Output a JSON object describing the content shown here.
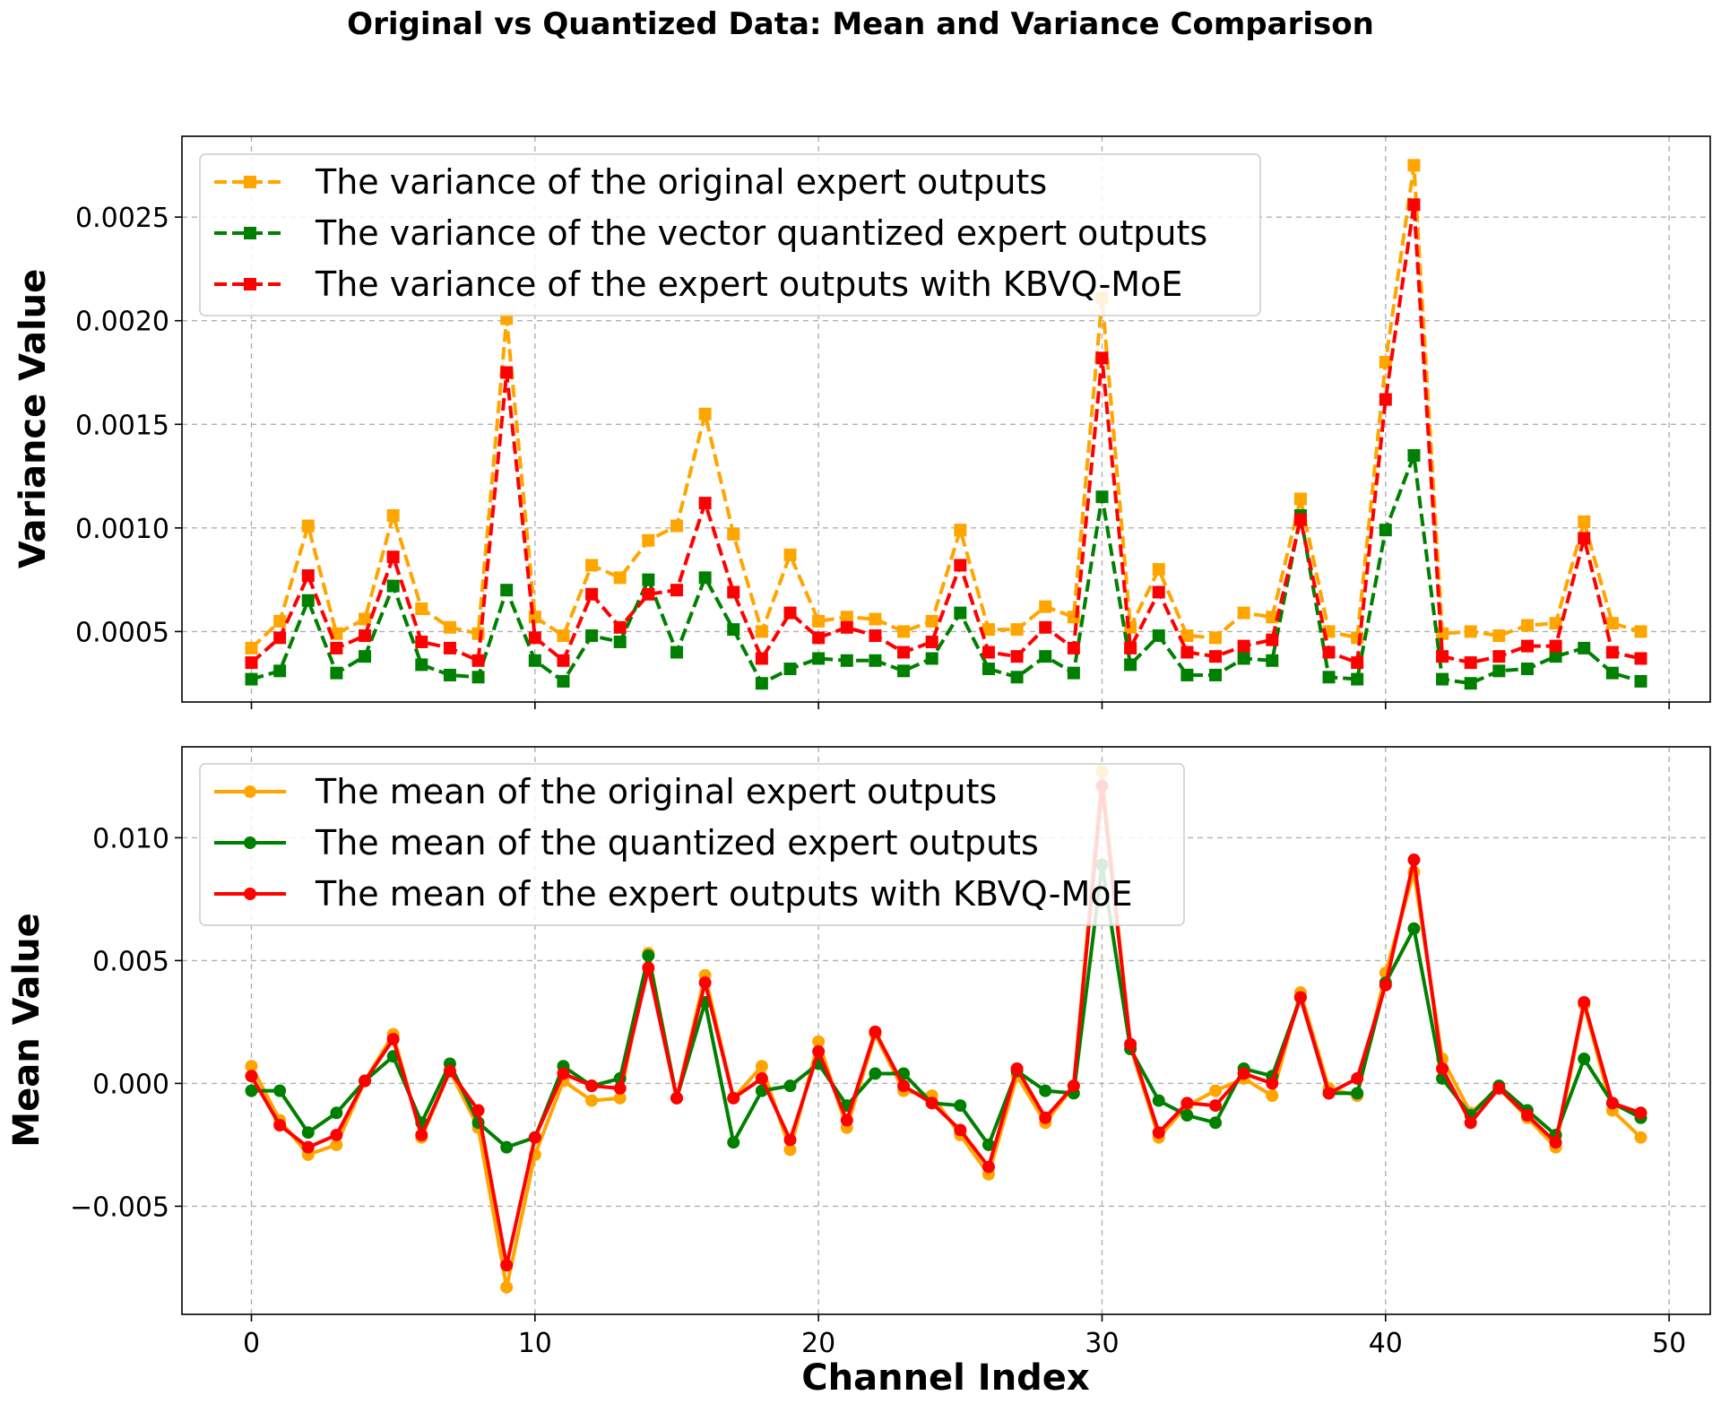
{
  "figure": {
    "title": "Original vs Quantized Data: Mean and Variance Comparison",
    "xlabel": "Channel Index"
  },
  "colors": {
    "orange": "#FFA500",
    "green": "#008000",
    "red": "#FF0000"
  },
  "chart_data": [
    {
      "type": "line",
      "id": "variance",
      "ylabel": "Variance Value",
      "xlim": [
        -2.45,
        51.45
      ],
      "ylim": [
        0.00016,
        0.00289
      ],
      "xticks": [
        0,
        10,
        20,
        30,
        40,
        50
      ],
      "xtick_labels": [
        "",
        "",
        "",
        "",
        "",
        ""
      ],
      "yticks": [
        0.0005,
        0.001,
        0.0015,
        0.002,
        0.0025
      ],
      "ytick_labels": [
        "0.0005",
        "0.0010",
        "0.0015",
        "0.0020",
        "0.0025"
      ],
      "grid": true,
      "legend_position": "top-left",
      "marker": "square",
      "linestyle": "dashed",
      "x": [
        0,
        1,
        2,
        3,
        4,
        5,
        6,
        7,
        8,
        9,
        10,
        11,
        12,
        13,
        14,
        15,
        16,
        17,
        18,
        19,
        20,
        21,
        22,
        23,
        24,
        25,
        26,
        27,
        28,
        29,
        30,
        31,
        32,
        33,
        34,
        35,
        36,
        37,
        38,
        39,
        40,
        41,
        42,
        43,
        44,
        45,
        46,
        47,
        48,
        49
      ],
      "series": [
        {
          "name": "The variance of the original expert outputs",
          "color": "orange",
          "values": [
            0.00042,
            0.00055,
            0.00101,
            0.00049,
            0.00056,
            0.00106,
            0.00061,
            0.00052,
            0.00049,
            0.00201,
            0.00057,
            0.00048,
            0.00082,
            0.00076,
            0.00094,
            0.00101,
            0.00155,
            0.00097,
            0.0005,
            0.00087,
            0.00055,
            0.00057,
            0.00056,
            0.0005,
            0.00055,
            0.00099,
            0.00051,
            0.00051,
            0.00062,
            0.00057,
            0.00211,
            0.00052,
            0.0008,
            0.00048,
            0.00047,
            0.00059,
            0.00057,
            0.00114,
            0.0005,
            0.00047,
            0.0018,
            0.00275,
            0.00049,
            0.0005,
            0.00048,
            0.00053,
            0.00054,
            0.00103,
            0.00054,
            0.0005
          ]
        },
        {
          "name": "The variance of the vector quantized expert outputs",
          "color": "green",
          "values": [
            0.00027,
            0.00031,
            0.00065,
            0.0003,
            0.00038,
            0.00072,
            0.00034,
            0.00029,
            0.00028,
            0.0007,
            0.00036,
            0.00026,
            0.00048,
            0.00045,
            0.00075,
            0.0004,
            0.00076,
            0.00051,
            0.00025,
            0.00032,
            0.00037,
            0.00036,
            0.00036,
            0.00031,
            0.00037,
            0.00059,
            0.00032,
            0.00028,
            0.00038,
            0.0003,
            0.00115,
            0.00034,
            0.00048,
            0.00029,
            0.00029,
            0.00037,
            0.00036,
            0.00106,
            0.00028,
            0.00027,
            0.00099,
            0.00135,
            0.00027,
            0.00025,
            0.00031,
            0.00032,
            0.00038,
            0.00042,
            0.0003,
            0.00026
          ]
        },
        {
          "name": "The variance of the expert outputs with KBVQ-MoE",
          "color": "red",
          "values": [
            0.00035,
            0.00047,
            0.00077,
            0.00042,
            0.00048,
            0.00086,
            0.00045,
            0.00042,
            0.00036,
            0.00175,
            0.00047,
            0.00036,
            0.00068,
            0.00052,
            0.00068,
            0.0007,
            0.00112,
            0.00069,
            0.00037,
            0.00059,
            0.00047,
            0.00052,
            0.00048,
            0.0004,
            0.00045,
            0.00082,
            0.0004,
            0.00038,
            0.00052,
            0.00042,
            0.00182,
            0.00042,
            0.00069,
            0.0004,
            0.00038,
            0.00043,
            0.00046,
            0.00104,
            0.0004,
            0.00035,
            0.00162,
            0.00256,
            0.00038,
            0.00035,
            0.00038,
            0.00043,
            0.00043,
            0.00095,
            0.0004,
            0.00037
          ]
        }
      ]
    },
    {
      "type": "line",
      "id": "mean",
      "ylabel": "Mean Value",
      "xlim": [
        -2.45,
        51.45
      ],
      "ylim": [
        -0.0094,
        0.0137
      ],
      "xticks": [
        0,
        10,
        20,
        30,
        40,
        50
      ],
      "xtick_labels": [
        "0",
        "10",
        "20",
        "30",
        "40",
        "50"
      ],
      "yticks": [
        -0.005,
        0,
        0.005,
        0.01
      ],
      "ytick_labels": [
        "−0.005",
        "0.000",
        "0.005",
        "0.010"
      ],
      "grid": true,
      "legend_position": "top-left",
      "marker": "circle",
      "linestyle": "solid",
      "x": [
        0,
        1,
        2,
        3,
        4,
        5,
        6,
        7,
        8,
        9,
        10,
        11,
        12,
        13,
        14,
        15,
        16,
        17,
        18,
        19,
        20,
        21,
        22,
        23,
        24,
        25,
        26,
        27,
        28,
        29,
        30,
        31,
        32,
        33,
        34,
        35,
        36,
        37,
        38,
        39,
        40,
        41,
        42,
        43,
        44,
        45,
        46,
        47,
        48,
        49
      ],
      "series": [
        {
          "name": "The mean of the original expert outputs",
          "color": "orange",
          "values": [
            0.0007,
            -0.0015,
            -0.0029,
            -0.0025,
            0.0001,
            0.002,
            -0.0022,
            0.0005,
            -0.0018,
            -0.0083,
            -0.0029,
            0.0001,
            -0.0007,
            -0.0006,
            0.0053,
            -0.0006,
            0.0044,
            -0.0006,
            0.0007,
            -0.0027,
            0.0017,
            -0.0018,
            0.002,
            -0.0003,
            -0.0005,
            -0.0021,
            -0.0037,
            0.0003,
            -0.0016,
            -0.0001,
            0.0127,
            0.0015,
            -0.0022,
            -0.0009,
            -0.0003,
            0.0002,
            -0.0005,
            0.0037,
            -0.0002,
            -0.0005,
            0.0045,
            0.0086,
            0.001,
            -0.0012,
            -0.0002,
            -0.0014,
            -0.0026,
            0.0032,
            -0.0011,
            -0.0022
          ]
        },
        {
          "name": "The mean of the quantized expert outputs",
          "color": "green",
          "values": [
            -0.0003,
            -0.0003,
            -0.002,
            -0.0012,
            0.0001,
            0.0011,
            -0.0016,
            0.0008,
            -0.0016,
            -0.0026,
            -0.0022,
            0.0007,
            -0.0001,
            0.0002,
            0.0052,
            -0.0006,
            0.0033,
            -0.0024,
            -0.0003,
            -0.0001,
            0.0008,
            -0.0009,
            0.0004,
            0.0004,
            -0.0008,
            -0.0009,
            -0.0025,
            0.0005,
            -0.0003,
            -0.0004,
            0.0089,
            0.0014,
            -0.0007,
            -0.0013,
            -0.0016,
            0.0006,
            0.0003,
            0.0035,
            -0.0004,
            -0.0004,
            0.0041,
            0.0063,
            0.0002,
            -0.0013,
            -0.0001,
            -0.0011,
            -0.0021,
            0.001,
            -0.0008,
            -0.0014
          ]
        },
        {
          "name": "The mean of the expert outputs with KBVQ-MoE",
          "color": "red",
          "values": [
            0.0003,
            -0.0017,
            -0.0026,
            -0.0021,
            0.0001,
            0.0018,
            -0.0021,
            0.0005,
            -0.0011,
            -0.0074,
            -0.0022,
            0.0004,
            -0.0001,
            -0.0002,
            0.0047,
            -0.0006,
            0.0041,
            -0.0006,
            0.0002,
            -0.0023,
            0.0013,
            -0.0015,
            0.0021,
            -0.0001,
            -0.0008,
            -0.0019,
            -0.0034,
            0.0006,
            -0.0014,
            -0.0001,
            0.0121,
            0.0016,
            -0.002,
            -0.0008,
            -0.0009,
            0.0004,
            0.0,
            0.0035,
            -0.0004,
            0.0002,
            0.004,
            0.0091,
            0.0006,
            -0.0016,
            -0.0002,
            -0.0013,
            -0.0024,
            0.0033,
            -0.0008,
            -0.0012
          ]
        }
      ]
    }
  ]
}
